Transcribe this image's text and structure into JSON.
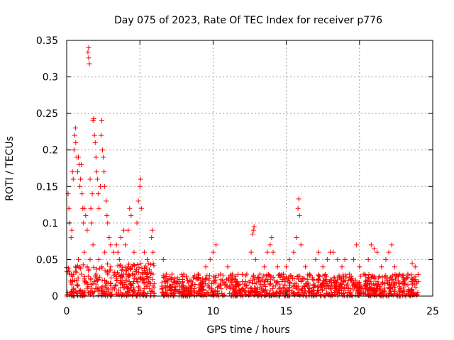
{
  "chart_data": {
    "type": "scatter",
    "title": "Day 075 of 2023, Rate Of TEC Index for receiver p776",
    "xlabel": "GPS time / hours",
    "ylabel": "ROTI / TECUs",
    "xlim": [
      0,
      25
    ],
    "ylim": [
      0,
      0.35
    ],
    "xticks": [
      0,
      5,
      10,
      15,
      20,
      25
    ],
    "xtick_labels": [
      "0",
      "5",
      "10",
      "15",
      "20",
      "25"
    ],
    "yticks": [
      0,
      0.05,
      0.1,
      0.15,
      0.2,
      0.25,
      0.3,
      0.35
    ],
    "ytick_labels": [
      "0",
      "0.05",
      "0.1",
      "0.15",
      "0.2",
      "0.25",
      "0.3",
      "0.35"
    ],
    "grid": true,
    "marker": "+",
    "color": "#ff0000",
    "points": [
      [
        0.1,
        0.14
      ],
      [
        0.15,
        0.12
      ],
      [
        0.2,
        0.1
      ],
      [
        0.3,
        0.08
      ],
      [
        0.35,
        0.09
      ],
      [
        0.4,
        0.17
      ],
      [
        0.45,
        0.16
      ],
      [
        0.5,
        0.2
      ],
      [
        0.55,
        0.22
      ],
      [
        0.6,
        0.23
      ],
      [
        0.62,
        0.21
      ],
      [
        0.7,
        0.19
      ],
      [
        0.75,
        0.17
      ],
      [
        0.8,
        0.19
      ],
      [
        0.85,
        0.18
      ],
      [
        0.9,
        0.15
      ],
      [
        0.95,
        0.16
      ],
      [
        1.0,
        0.18
      ],
      [
        1.05,
        0.14
      ],
      [
        1.1,
        0.12
      ],
      [
        1.15,
        0.1
      ],
      [
        1.2,
        0.12
      ],
      [
        1.3,
        0.11
      ],
      [
        1.4,
        0.09
      ],
      [
        1.45,
        0.334
      ],
      [
        1.5,
        0.34
      ],
      [
        1.5,
        0.326
      ],
      [
        1.55,
        0.318
      ],
      [
        1.6,
        0.16
      ],
      [
        1.65,
        0.12
      ],
      [
        1.7,
        0.1
      ],
      [
        1.75,
        0.14
      ],
      [
        1.8,
        0.24
      ],
      [
        1.85,
        0.243
      ],
      [
        1.9,
        0.22
      ],
      [
        1.95,
        0.21
      ],
      [
        2.0,
        0.19
      ],
      [
        2.05,
        0.17
      ],
      [
        2.1,
        0.16
      ],
      [
        2.15,
        0.14
      ],
      [
        2.2,
        0.12
      ],
      [
        2.3,
        0.15
      ],
      [
        2.35,
        0.22
      ],
      [
        2.4,
        0.24
      ],
      [
        2.45,
        0.2
      ],
      [
        2.5,
        0.19
      ],
      [
        2.55,
        0.17
      ],
      [
        2.6,
        0.15
      ],
      [
        2.7,
        0.13
      ],
      [
        2.75,
        0.11
      ],
      [
        2.8,
        0.1
      ],
      [
        2.9,
        0.08
      ],
      [
        3.0,
        0.07
      ],
      [
        3.2,
        0.06
      ],
      [
        3.4,
        0.07
      ],
      [
        3.5,
        0.06
      ],
      [
        3.7,
        0.08
      ],
      [
        3.9,
        0.09
      ],
      [
        4.0,
        0.07
      ],
      [
        4.2,
        0.09
      ],
      [
        4.3,
        0.12
      ],
      [
        4.4,
        0.11
      ],
      [
        4.6,
        0.06
      ],
      [
        4.8,
        0.1
      ],
      [
        4.9,
        0.13
      ],
      [
        5.0,
        0.15
      ],
      [
        5.05,
        0.16
      ],
      [
        5.1,
        0.12
      ],
      [
        5.3,
        0.06
      ],
      [
        5.5,
        0.05
      ],
      [
        5.8,
        0.08
      ],
      [
        5.85,
        0.09
      ],
      [
        5.9,
        0.06
      ],
      [
        0.2,
        0.03
      ],
      [
        0.4,
        0.02
      ],
      [
        0.6,
        0.04
      ],
      [
        0.8,
        0.05
      ],
      [
        1.0,
        0.03
      ],
      [
        1.2,
        0.06
      ],
      [
        1.4,
        0.04
      ],
      [
        1.6,
        0.05
      ],
      [
        1.8,
        0.07
      ],
      [
        2.0,
        0.03
      ],
      [
        2.2,
        0.05
      ],
      [
        2.4,
        0.04
      ],
      [
        2.6,
        0.06
      ],
      [
        2.8,
        0.03
      ],
      [
        3.0,
        0.04
      ],
      [
        3.3,
        0.03
      ],
      [
        3.6,
        0.05
      ],
      [
        3.9,
        0.03
      ],
      [
        4.2,
        0.04
      ],
      [
        4.5,
        0.03
      ],
      [
        4.8,
        0.02
      ],
      [
        5.2,
        0.03
      ],
      [
        5.6,
        0.02
      ],
      [
        5.9,
        0.03
      ],
      [
        6.6,
        0.05
      ],
      [
        6.8,
        0.03
      ],
      [
        7.2,
        0.03
      ],
      [
        7.6,
        0.02
      ],
      [
        8.0,
        0.03
      ],
      [
        8.5,
        0.02
      ],
      [
        9.0,
        0.03
      ],
      [
        9.5,
        0.04
      ],
      [
        9.8,
        0.05
      ],
      [
        10.0,
        0.06
      ],
      [
        10.2,
        0.07
      ],
      [
        10.5,
        0.03
      ],
      [
        11.0,
        0.04
      ],
      [
        11.3,
        0.03
      ],
      [
        11.6,
        0.02
      ],
      [
        12.0,
        0.02
      ],
      [
        12.3,
        0.03
      ],
      [
        12.6,
        0.06
      ],
      [
        12.7,
        0.085
      ],
      [
        12.75,
        0.09
      ],
      [
        12.8,
        0.095
      ],
      [
        12.9,
        0.05
      ],
      [
        13.2,
        0.03
      ],
      [
        13.5,
        0.04
      ],
      [
        13.7,
        0.06
      ],
      [
        13.9,
        0.07
      ],
      [
        14.0,
        0.08
      ],
      [
        14.1,
        0.06
      ],
      [
        14.4,
        0.04
      ],
      [
        14.8,
        0.03
      ],
      [
        15.0,
        0.04
      ],
      [
        15.2,
        0.05
      ],
      [
        15.5,
        0.06
      ],
      [
        15.7,
        0.08
      ],
      [
        15.8,
        0.12
      ],
      [
        15.85,
        0.133
      ],
      [
        15.9,
        0.11
      ],
      [
        16.0,
        0.07
      ],
      [
        16.3,
        0.04
      ],
      [
        16.6,
        0.03
      ],
      [
        17.0,
        0.05
      ],
      [
        17.2,
        0.06
      ],
      [
        17.5,
        0.04
      ],
      [
        17.8,
        0.05
      ],
      [
        18.0,
        0.06
      ],
      [
        18.2,
        0.06
      ],
      [
        18.5,
        0.05
      ],
      [
        18.8,
        0.04
      ],
      [
        19.0,
        0.05
      ],
      [
        19.3,
        0.03
      ],
      [
        19.6,
        0.05
      ],
      [
        19.8,
        0.07
      ],
      [
        20.0,
        0.04
      ],
      [
        20.3,
        0.03
      ],
      [
        20.6,
        0.05
      ],
      [
        20.8,
        0.07
      ],
      [
        21.0,
        0.065
      ],
      [
        21.2,
        0.06
      ],
      [
        21.5,
        0.04
      ],
      [
        21.8,
        0.05
      ],
      [
        22.0,
        0.06
      ],
      [
        22.2,
        0.07
      ],
      [
        22.4,
        0.04
      ],
      [
        22.7,
        0.03
      ],
      [
        23.0,
        0.02
      ],
      [
        23.3,
        0.03
      ],
      [
        23.6,
        0.045
      ],
      [
        23.8,
        0.04
      ],
      [
        24.0,
        0.02
      ]
    ],
    "band": {
      "segments": [
        {
          "x": [
            0,
            6.0
          ],
          "ymin": 0.0,
          "ymax": 0.045
        },
        {
          "x": [
            6.5,
            24.0
          ],
          "ymin": 0.0,
          "ymax": 0.03
        }
      ],
      "density_per_hour": 60
    }
  }
}
